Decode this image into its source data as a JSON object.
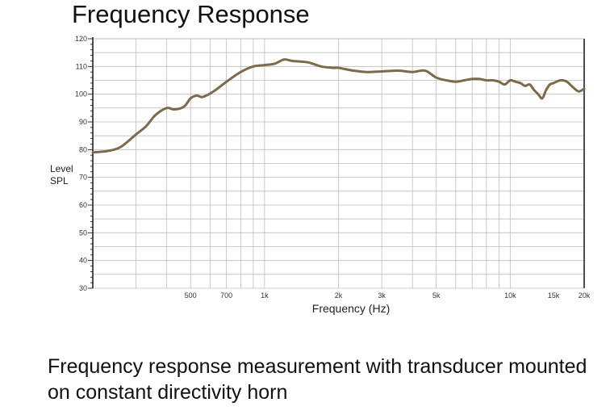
{
  "title": "Frequency Response",
  "caption": "Frequency response measurement with transducer mounted on constant directivity horn",
  "colors": {
    "curve": "#7d6a4a",
    "grid": "#bdbdbd",
    "axis": "#222222"
  },
  "chart_data": {
    "type": "line",
    "title": "Frequency Response",
    "xlabel": "Frequency (Hz)",
    "ylabel_lines": [
      "Level",
      "SPL"
    ],
    "x_scale": "log",
    "xlim": [
      200,
      20000
    ],
    "ylim": [
      30,
      120
    ],
    "x_tick_values": [
      500,
      700,
      1000,
      2000,
      3000,
      5000,
      10000,
      15000,
      20000
    ],
    "x_tick_labels": [
      "500",
      "700",
      "1k",
      "2k",
      "3k",
      "5k",
      "10k",
      "15k",
      "20k"
    ],
    "y_ticks": [
      30,
      40,
      50,
      60,
      70,
      80,
      90,
      100,
      110,
      120
    ],
    "grid": true,
    "series": [
      {
        "x": [
          200,
          230,
          260,
          300,
          330,
          360,
          400,
          430,
          470,
          500,
          530,
          560,
          620,
          700,
          800,
          900,
          1000,
          1100,
          1200,
          1300,
          1500,
          1700,
          1900,
          2000,
          2300,
          2600,
          3000,
          3500,
          4000,
          4500,
          5000,
          5500,
          6000,
          6500,
          7000,
          7500,
          8000,
          8500,
          9000,
          9500,
          10000,
          10500,
          11000,
          11500,
          12000,
          12500,
          13000,
          13500,
          14000,
          14500,
          15000,
          16000,
          17000,
          18000,
          19000,
          20000
        ],
        "y": [
          79,
          79.5,
          81,
          85.5,
          88.5,
          92.5,
          95,
          94.5,
          95.5,
          98.5,
          99.5,
          99,
          101,
          104.5,
          108,
          110,
          110.5,
          111,
          112.5,
          112,
          111.5,
          110,
          109.5,
          109.5,
          108.5,
          108,
          108.2,
          108.5,
          108,
          108.5,
          106,
          105,
          104.5,
          105,
          105.5,
          105.5,
          105,
          105,
          104.5,
          103.5,
          105,
          104.5,
          104,
          103,
          103.5,
          101.5,
          100,
          98.5,
          101.5,
          103.5,
          104,
          105,
          104.5,
          102.5,
          101,
          102
        ]
      }
    ]
  }
}
